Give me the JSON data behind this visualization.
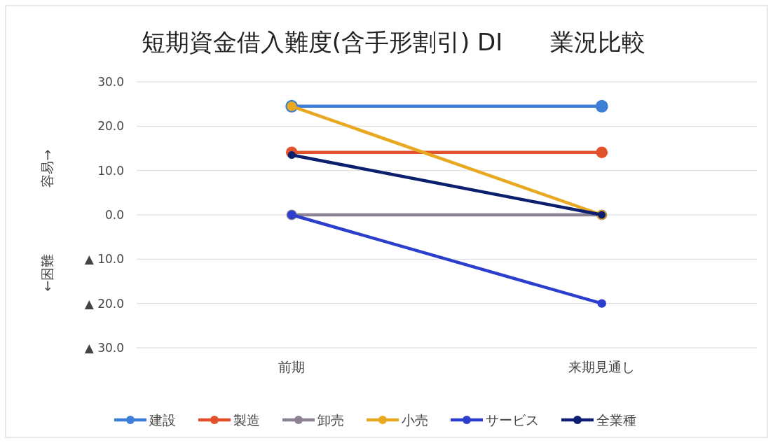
{
  "chart_data": {
    "type": "line",
    "title": "短期資金借入難度(含手形割引) DI　　業況比較",
    "ylabel": "←困難　　　　　容易→",
    "categories": [
      "前期",
      "来期見通し"
    ],
    "series": [
      {
        "name": "建設",
        "color": "#3d7fd6",
        "values": [
          24.5,
          24.5
        ]
      },
      {
        "name": "製造",
        "color": "#e0522a",
        "values": [
          14.1,
          14.1
        ]
      },
      {
        "name": "卸売",
        "color": "#8a8290",
        "values": [
          0,
          0
        ]
      },
      {
        "name": "小売",
        "color": "#e8a822",
        "values": [
          24.5,
          0
        ]
      },
      {
        "name": "サービス",
        "color": "#2b3fcc",
        "values": [
          0,
          -20
        ]
      },
      {
        "name": "全業種",
        "color": "#0c1f6e",
        "values": [
          13.5,
          0
        ]
      }
    ],
    "ylim": [
      -30,
      30
    ],
    "yticks": [
      {
        "value": -30,
        "label": "▲ 30.0"
      },
      {
        "value": -20,
        "label": "▲ 20.0"
      },
      {
        "value": -10,
        "label": "▲ 10.0"
      },
      {
        "value": 0,
        "label": "0.0"
      },
      {
        "value": 10,
        "label": "10.0"
      },
      {
        "value": 20,
        "label": "20.0"
      },
      {
        "value": 30,
        "label": "30.0"
      }
    ],
    "grid": "y",
    "legend": "bottom",
    "marker": "circle",
    "line_style": "solid"
  }
}
